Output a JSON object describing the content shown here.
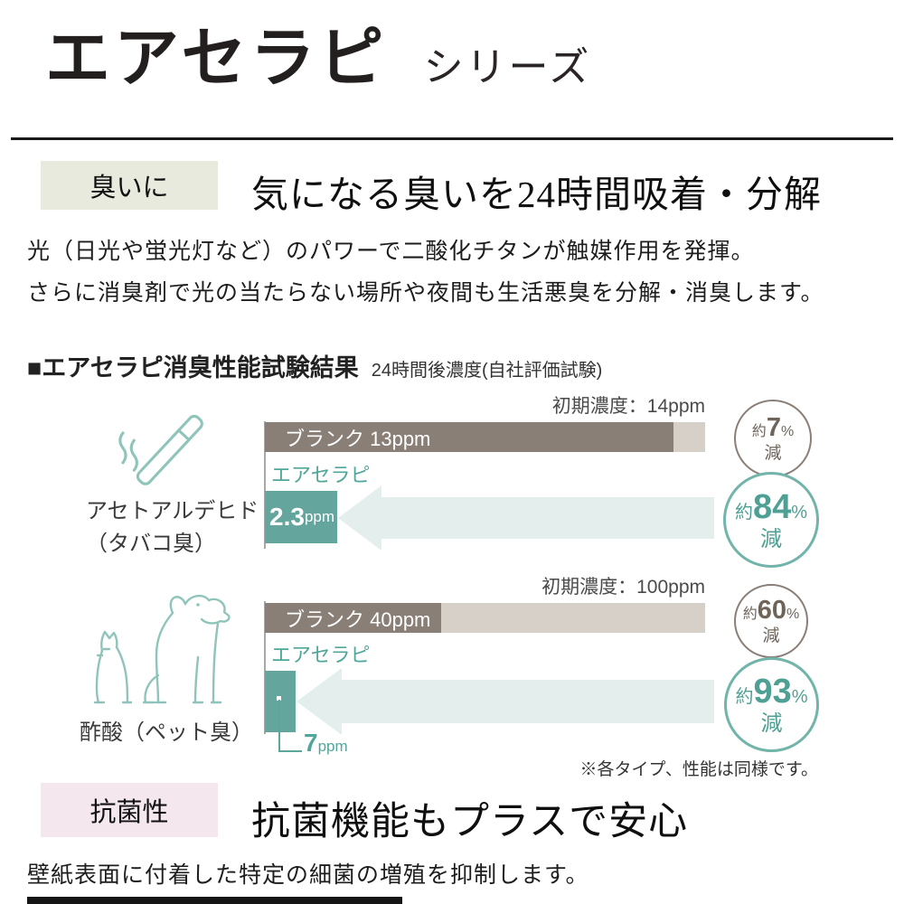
{
  "title": {
    "main": "エアセラピ",
    "sub": "シリーズ"
  },
  "deodorant_section": {
    "tag": "臭いに",
    "heading": "気になる臭いを24時間吸着・分解",
    "body_lines": [
      "光（日光や蛍光灯など）のパワーで二酸化チタンが触媒作用を発揮。",
      "さらに消臭剤で光の当たらない場所や夜間も生活悪臭を分解・消臭します。"
    ],
    "results_title": "■エアセラピ消臭性能試験結果",
    "results_subtitle": "24時間後濃度(自社評価試験)",
    "note": "※各タイプ、性能は同様です。"
  },
  "antibacterial_section": {
    "tag": "抗菌性",
    "heading": "抗菌機能もプラスで安心",
    "body": "壁紙表面に付着した特定の細菌の増殖を抑制します。"
  },
  "colors": {
    "accent_teal": "#5ba79b",
    "arrow_fill": "#e4efed",
    "bar_dark": "#8a7f77",
    "bar_light": "#d7d0c8",
    "tag_deodorant_bg": "#e7eadd",
    "tag_antibacterial_bg": "#f4e7ee"
  },
  "chart_data": [
    {
      "type": "bar",
      "odor_label": "アセトアルデヒド",
      "odor_sublabel": "（タバコ臭）",
      "icon": "cigarette-icon",
      "initial_concentration_label": "初期濃度：14ppm",
      "initial_ppm": 14,
      "xlim": [
        0,
        14
      ],
      "bars": [
        {
          "name": "ブランク",
          "value_ppm": 13,
          "label": "ブランク 13ppm",
          "color": "#8a7f77"
        },
        {
          "name": "エアセラピ",
          "value_ppm": 2.3,
          "value_text": "2.3",
          "unit": "ppm",
          "color": "#64a69d"
        }
      ],
      "reductions": [
        {
          "approx": "約",
          "value": 7,
          "percent_sign": "%",
          "word": "減",
          "ring_color": "#8a7f77"
        },
        {
          "approx": "約",
          "value": 84,
          "percent_sign": "%",
          "word": "減",
          "ring_color": "#72b4aa"
        }
      ]
    },
    {
      "type": "bar",
      "odor_label": "酢酸（ペット臭）",
      "icon": "cat-dog-icon",
      "initial_concentration_label": "初期濃度：100ppm",
      "initial_ppm": 100,
      "xlim": [
        0,
        100
      ],
      "bars": [
        {
          "name": "ブランク",
          "value_ppm": 40,
          "label": "ブランク 40ppm",
          "color": "#8a7f77"
        },
        {
          "name": "エアセラピ",
          "value_ppm": 7,
          "value_text": "7",
          "unit": "ppm",
          "color": "#64a69d"
        }
      ],
      "reductions": [
        {
          "approx": "約",
          "value": 60,
          "percent_sign": "%",
          "word": "減",
          "ring_color": "#8a7f77"
        },
        {
          "approx": "約",
          "value": 93,
          "percent_sign": "%",
          "word": "減",
          "ring_color": "#72b4aa"
        }
      ]
    }
  ]
}
